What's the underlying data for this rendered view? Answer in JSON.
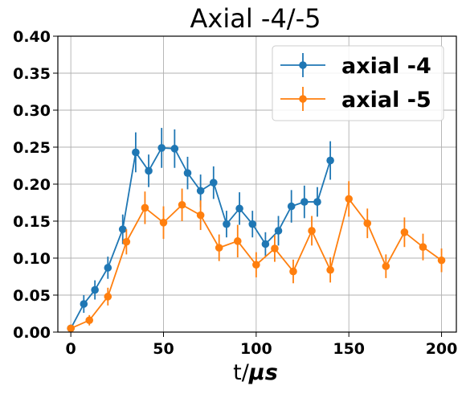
{
  "chart_data": {
    "type": "line",
    "title": "Axial -4/-5",
    "xlabel_prefix": "t/",
    "xlabel_unit": "μs",
    "ylabel": "",
    "xlim": [
      -7,
      208
    ],
    "ylim": [
      0.0,
      0.4
    ],
    "xticks": [
      0,
      50,
      100,
      150,
      200
    ],
    "yticks": [
      0.0,
      0.05,
      0.1,
      0.15,
      0.2,
      0.25,
      0.3,
      0.35,
      0.4
    ],
    "xtick_labels": [
      "0",
      "50",
      "100",
      "150",
      "200"
    ],
    "ytick_labels": [
      "0.00",
      "0.05",
      "0.10",
      "0.15",
      "0.20",
      "0.25",
      "0.30",
      "0.35",
      "0.40"
    ],
    "grid": true,
    "legend_position": "top-right",
    "series": [
      {
        "name": "axial -4",
        "color": "#1f77b4",
        "x": [
          0,
          7,
          13,
          20,
          28,
          35,
          42,
          49,
          56,
          63,
          70,
          77,
          84,
          91,
          98,
          105,
          112,
          119,
          126,
          133,
          140
        ],
        "y": [
          0.005,
          0.038,
          0.057,
          0.087,
          0.139,
          0.243,
          0.218,
          0.249,
          0.248,
          0.215,
          0.191,
          0.202,
          0.146,
          0.167,
          0.146,
          0.119,
          0.137,
          0.17,
          0.176,
          0.176,
          0.232
        ],
        "err": [
          0.004,
          0.012,
          0.013,
          0.015,
          0.02,
          0.027,
          0.022,
          0.027,
          0.026,
          0.022,
          0.022,
          0.022,
          0.018,
          0.022,
          0.018,
          0.016,
          0.02,
          0.022,
          0.022,
          0.02,
          0.026
        ]
      },
      {
        "name": "axial -5",
        "color": "#ff7f0e",
        "x": [
          0,
          10,
          20,
          30,
          40,
          50,
          60,
          70,
          80,
          90,
          100,
          110,
          120,
          130,
          140,
          150,
          160,
          170,
          180,
          190,
          200
        ],
        "y": [
          0.005,
          0.016,
          0.048,
          0.122,
          0.168,
          0.148,
          0.172,
          0.158,
          0.114,
          0.123,
          0.091,
          0.113,
          0.082,
          0.137,
          0.084,
          0.18,
          0.147,
          0.089,
          0.135,
          0.115,
          0.097
        ],
        "err": [
          0.004,
          0.007,
          0.012,
          0.017,
          0.022,
          0.022,
          0.022,
          0.02,
          0.018,
          0.022,
          0.017,
          0.018,
          0.016,
          0.02,
          0.017,
          0.024,
          0.02,
          0.016,
          0.02,
          0.018,
          0.016
        ]
      }
    ]
  }
}
